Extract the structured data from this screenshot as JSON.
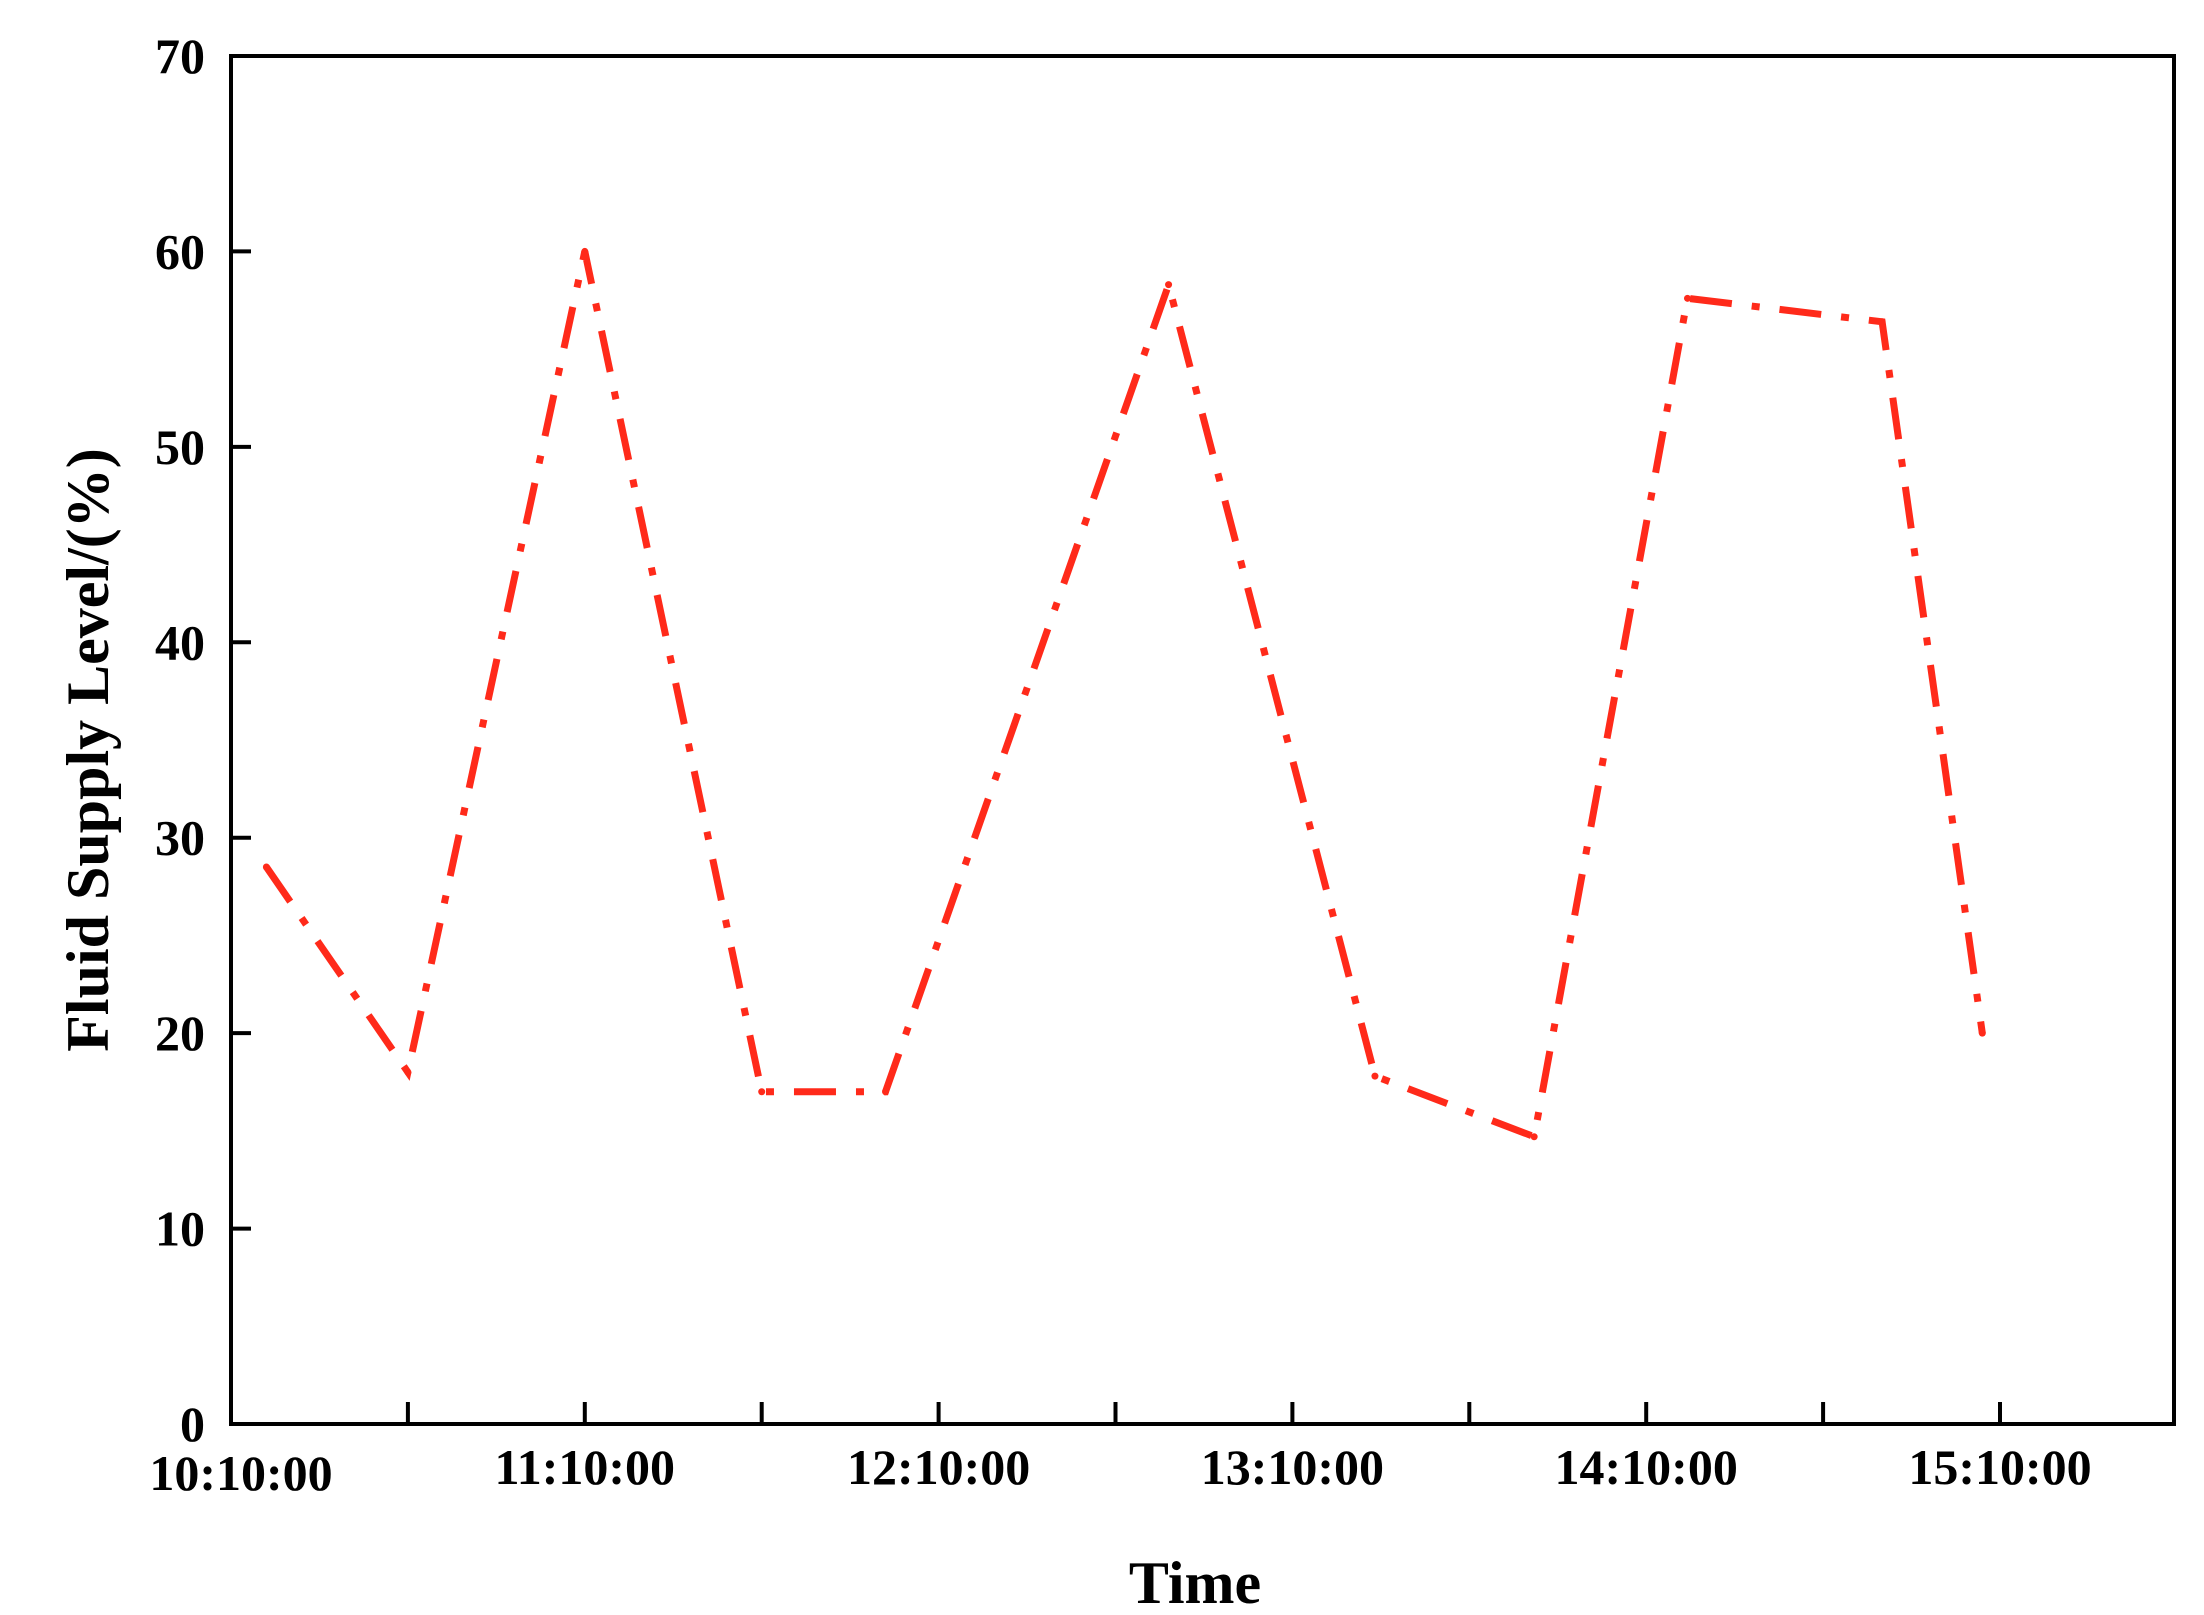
{
  "chart_data": {
    "type": "line",
    "title": "",
    "xlabel": "Time",
    "ylabel": "Fluid Supply Level/(%)",
    "ylim": [
      0,
      70
    ],
    "y_ticks": [
      "0",
      "10",
      "20",
      "30",
      "40",
      "50",
      "60",
      "70"
    ],
    "x_tick_labels": [
      "10:10:00",
      "11:10:00",
      "12:10:00",
      "13:10:00",
      "14:10:00",
      "15:10:00"
    ],
    "grid": false,
    "legend": "none",
    "line_color": "#ff2a1a",
    "line_style": "dash-dot",
    "series": [
      {
        "x": [
          "10:16:00",
          "10:40:00",
          "11:10:00",
          "11:40:00",
          "12:01:00",
          "12:49:00",
          "13:24:00",
          "13:51:00",
          "14:17:00",
          "14:50:00",
          "15:07:00"
        ],
        "values": [
          28.5,
          18.0,
          60.0,
          17.0,
          17.0,
          58.3,
          17.8,
          14.7,
          57.6,
          56.4,
          20.0
        ]
      }
    ]
  }
}
